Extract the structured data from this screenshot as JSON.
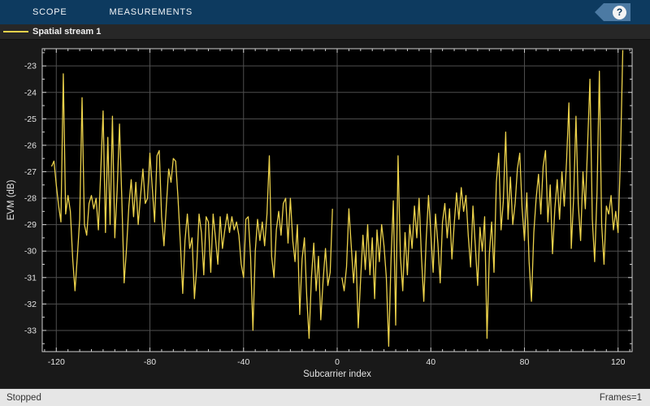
{
  "toolbar": {
    "tabs": [
      {
        "label": "SCOPE"
      },
      {
        "label": "MEASUREMENTS"
      }
    ],
    "help_icon": "?"
  },
  "legend": {
    "items": [
      {
        "label": "Spatial stream 1",
        "color": "#ecd24b"
      }
    ]
  },
  "status_bar": {
    "left": "Stopped",
    "right": "Frames=1"
  },
  "colors": {
    "toolbar_bg": "#0d3a5f",
    "help_tag": "#4c7aa3",
    "figure_bg": "#191919",
    "axes_bg": "#000000",
    "grid": "#4f4f4f",
    "axis_border": "#cfcfcf",
    "tick_label": "#e3e3e3",
    "line": "#ecd24b",
    "status_bg": "#e6e6e6"
  },
  "chart_data": {
    "type": "line",
    "title": "",
    "xlabel": "Subcarrier index",
    "ylabel": "EVM (dB)",
    "xlim": [
      -126,
      126
    ],
    "ylim": [
      -33.8,
      -22.35
    ],
    "xticks": [
      -120,
      -80,
      -40,
      0,
      40,
      80,
      120
    ],
    "yticks": [
      -33,
      -32,
      -31,
      -30,
      -29,
      -28,
      -27,
      -26,
      -25,
      -24,
      -23
    ],
    "x_minor_step": 5,
    "y_minor_step": 0.5,
    "grid": true,
    "legend_position": "top-left-bar",
    "series": [
      {
        "name": "Spatial stream 1",
        "color": "#ecd24b",
        "segments": [
          {
            "x_start": -122,
            "x_step": 1,
            "y": [
              -26.8,
              -26.6,
              -27.5,
              -28.3,
              -28.9,
              -23.3,
              -28.6,
              -27.9,
              -28.5,
              -30.3,
              -31.5,
              -30.2,
              -28.8,
              -24.2,
              -29.0,
              -29.4,
              -28.2,
              -27.9,
              -28.4,
              -28.0,
              -29.2,
              -27.0,
              -24.7,
              -29.3,
              -25.7,
              -29.0,
              -24.9,
              -29.5,
              -27.7,
              -25.2,
              -28.1,
              -31.2,
              -29.9,
              -28.3,
              -27.3,
              -28.7,
              -27.4,
              -29.0,
              -27.9,
              -26.9,
              -28.2,
              -28.0,
              -26.3,
              -27.6,
              -28.9,
              -26.4,
              -26.2,
              -28.7,
              -29.8,
              -28.3,
              -26.9,
              -27.4,
              -26.5,
              -26.6,
              -28.0,
              -29.7,
              -31.6,
              -29.6,
              -28.6,
              -29.9,
              -29.5,
              -31.8,
              -30.6,
              -28.6,
              -29.3,
              -30.9,
              -28.7,
              -28.9,
              -30.8,
              -28.6,
              -29.5,
              -30.5,
              -28.7,
              -29.9,
              -29.2,
              -28.6,
              -29.3,
              -28.7,
              -29.2,
              -28.9,
              -29.4,
              -30.5,
              -31.0,
              -28.8,
              -28.7,
              -30.2,
              -33.0,
              -30.0,
              -28.8,
              -29.6,
              -28.9,
              -29.8,
              -28.6,
              -26.4,
              -30.2,
              -31.0,
              -29.2,
              -28.5,
              -29.4,
              -28.2,
              -28.0,
              -29.7,
              -28.0,
              -29.6,
              -30.4,
              -29.0,
              -32.4,
              -30.3,
              -29.5,
              -31.7,
              -33.3,
              -31.0,
              -29.7,
              -31.5,
              -30.2,
              -32.6,
              -31.1,
              -29.9,
              -31.3,
              -30.8,
              -28.4
            ]
          },
          {
            "x_start": 2,
            "x_step": 1,
            "y": [
              -31.0,
              -31.5,
              -30.6,
              -28.4,
              -29.8,
              -31.2,
              -30.0,
              -32.9,
              -31.1,
              -29.4,
              -30.7,
              -29.0,
              -30.9,
              -29.5,
              -31.8,
              -29.2,
              -30.4,
              -29.0,
              -29.8,
              -31.0,
              -33.6,
              -30.3,
              -28.1,
              -32.8,
              -26.4,
              -30.2,
              -31.5,
              -29.3,
              -30.9,
              -29.0,
              -29.9,
              -28.3,
              -29.5,
              -28.0,
              -30.2,
              -31.9,
              -29.6,
              -27.9,
              -29.3,
              -30.8,
              -28.6,
              -29.7,
              -31.2,
              -28.9,
              -28.2,
              -29.5,
              -28.4,
              -30.3,
              -29.0,
              -27.8,
              -28.8,
              -27.6,
              -28.5,
              -27.9,
              -29.4,
              -30.6,
              -28.3,
              -29.8,
              -31.3,
              -29.1,
              -30.0,
              -28.7,
              -33.3,
              -30.1,
              -28.9,
              -30.8,
              -27.4,
              -26.3,
              -29.2,
              -28.1,
              -25.5,
              -28.8,
              -27.2,
              -29.0,
              -28.2,
              -26.9,
              -26.3,
              -28.4,
              -29.6,
              -27.8,
              -30.4,
              -31.9,
              -29.3,
              -28.0,
              -27.1,
              -28.6,
              -26.8,
              -26.2,
              -28.9,
              -27.5,
              -30.1,
              -28.4,
              -27.3,
              -28.8,
              -27.0,
              -28.3,
              -26.6,
              -24.4,
              -29.9,
              -28.0,
              -24.9,
              -28.2,
              -29.6,
              -27.0,
              -28.4,
              -25.9,
              -23.5,
              -28.8,
              -30.4,
              -27.8,
              -23.2,
              -29.0,
              -30.5,
              -28.3,
              -28.6,
              -27.9,
              -29.2,
              -28.5,
              -29.3,
              -26.5,
              -22.4
            ]
          }
        ]
      }
    ]
  }
}
